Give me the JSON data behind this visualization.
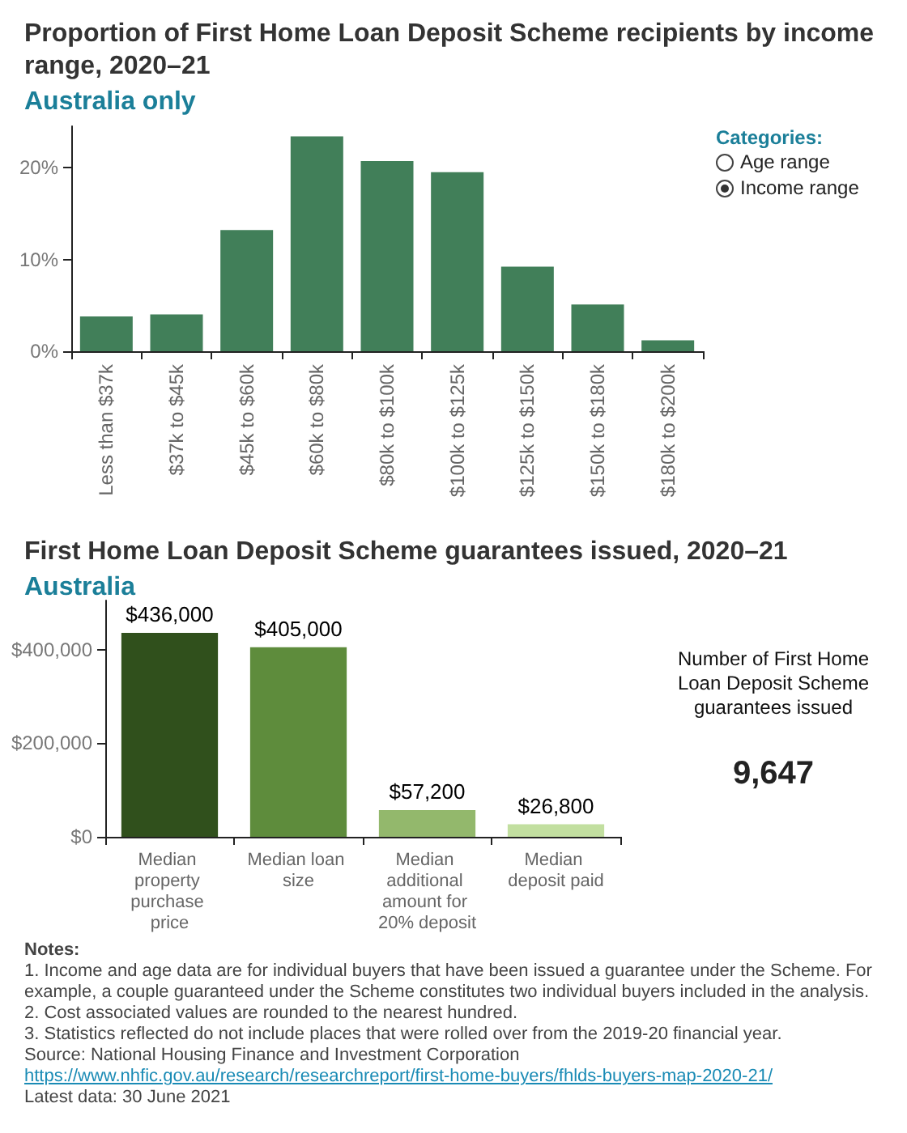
{
  "chart_data": [
    {
      "type": "bar",
      "title": "Proportion of First Home Loan Deposit Scheme recipients by income range, 2020–21",
      "subtitle": "Australia only",
      "categories": [
        "Less than $37k",
        "$37k to $45k",
        "$45k to $60k",
        "$60k to $80k",
        "$80k to $100k",
        "$100k to $125k",
        "$125k to $150k",
        "$150k to $180k",
        "$180k to $200k"
      ],
      "values": [
        3.8,
        4.0,
        13.2,
        23.4,
        20.7,
        19.5,
        9.2,
        5.1,
        1.2
      ],
      "color": "#417f59",
      "ylim": [
        0,
        24.5
      ],
      "yticks": [
        {
          "value": 0,
          "label": "0%"
        },
        {
          "value": 10,
          "label": "10%"
        },
        {
          "value": 20,
          "label": "20%"
        }
      ],
      "grid": false,
      "annotations": [
        "Categories:",
        "Age range",
        "Income range"
      ]
    },
    {
      "type": "bar",
      "title": "First Home Loan Deposit Scheme guarantees issued, 2020–21",
      "subtitle": "Australia",
      "categories": [
        "Median property purchase price",
        "Median loan size",
        "Median additional amount for 20% deposit",
        "Median deposit paid"
      ],
      "values": [
        436000,
        405000,
        57200,
        26800
      ],
      "colors": [
        "#30501c",
        "#5e8c3c",
        "#93b86c",
        "#c2dfa0"
      ],
      "value_labels": [
        "$436,000",
        "$405,000",
        "$57,200",
        "$26,800"
      ],
      "ylim": [
        0,
        505000
      ],
      "yticks": [
        {
          "value": 0,
          "label": "$0"
        },
        {
          "value": 200000,
          "label": "$200,000"
        },
        {
          "value": 400000,
          "label": "$400,000"
        }
      ],
      "grid": false
    },
    {
      "type": "other",
      "title": "Number of First Home Loan Deposit Scheme guarantees issued",
      "annotations": [
        "9,647",
        "Notes:",
        "1. Income and age data are for individual buyers that have been issued a guarantee under the Scheme. For example, a couple guaranteed under the Scheme constitutes two individual buyers included in the analysis.",
        "2. Cost associated values are rounded to the nearest hundred.",
        "3. Statistics reflected do not include places that were rolled over from the 2019-20 financial year.",
        "Source: National Housing Finance and Investment Corporation",
        "https://www.nhfic.gov.au/research/researchreport/first-home-buyers/fhlds-buyers-map-2020-21/",
        "Latest data: 30 June 2021"
      ]
    }
  ]
}
